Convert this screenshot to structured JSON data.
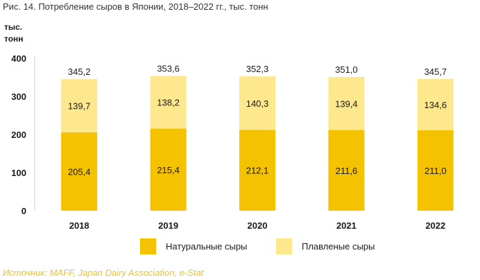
{
  "figure": {
    "title": "Рис. 14. Потребление сыров в Японии, 2018–2022 гг., тыс. тонн",
    "source": "Источник: MAFF, Japan Dairy Association, e-Stat"
  },
  "chart_data": {
    "type": "bar",
    "stacked": true,
    "y_unit_label": [
      "тыс.",
      "тонн"
    ],
    "categories": [
      "2018",
      "2019",
      "2020",
      "2021",
      "2022"
    ],
    "series": [
      {
        "name": "Натуральные сыры",
        "color": "#f5c200",
        "values": [
          205.4,
          215.4,
          212.1,
          211.6,
          211.0
        ],
        "labels": [
          "205,4",
          "215,4",
          "212,1",
          "211,6",
          "211,0"
        ]
      },
      {
        "name": "Плавленые сыры",
        "color": "#fde88e",
        "values": [
          139.7,
          138.2,
          140.3,
          139.4,
          134.6
        ],
        "labels": [
          "139,7",
          "138,2",
          "140,3",
          "139,4",
          "134,6"
        ]
      }
    ],
    "totals": [
      345.2,
      353.6,
      352.3,
      351.0,
      345.7
    ],
    "total_labels": [
      "345,2",
      "353,6",
      "352,3",
      "351,0",
      "345,7"
    ],
    "ylim": [
      0,
      400
    ],
    "yticks": [
      0,
      100,
      200,
      300,
      400
    ],
    "ytick_labels": [
      "0",
      "100",
      "200",
      "300",
      "400"
    ],
    "grid": false,
    "legend_position": "bottom"
  }
}
